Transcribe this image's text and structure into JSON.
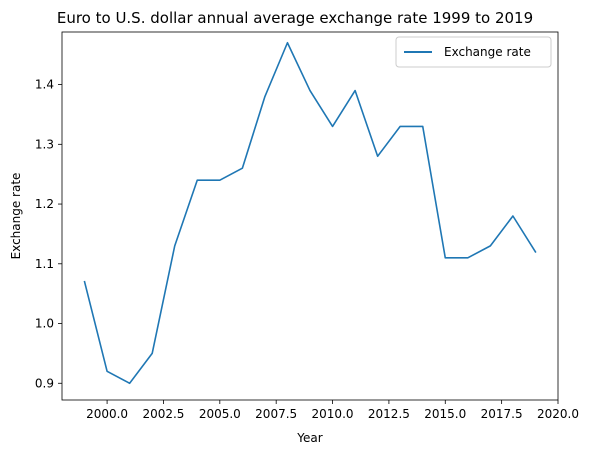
{
  "chart_data": {
    "type": "line",
    "title": "Euro to U.S. dollar annual average exchange rate 1999 to 2019",
    "xlabel": "Year",
    "ylabel": "Exchange rate",
    "xlim": [
      1998.0,
      2020.0
    ],
    "ylim": [
      0.872,
      1.488
    ],
    "xticks": [
      2000.0,
      2002.5,
      2005.0,
      2007.5,
      2010.0,
      2012.5,
      2015.0,
      2017.5,
      2020.0
    ],
    "xtick_labels": [
      "2000.0",
      "2002.5",
      "2005.0",
      "2007.5",
      "2010.0",
      "2012.5",
      "2015.0",
      "2017.5",
      "2020.0"
    ],
    "yticks": [
      0.9,
      1.0,
      1.1,
      1.2,
      1.3,
      1.4
    ],
    "ytick_labels": [
      "0.9",
      "1.0",
      "1.1",
      "1.2",
      "1.3",
      "1.4"
    ],
    "grid": false,
    "legend": "top-right",
    "series": [
      {
        "name": "Exchange rate",
        "color": "#1f77b4",
        "x": [
          1999,
          2000,
          2001,
          2002,
          2003,
          2004,
          2005,
          2006,
          2007,
          2008,
          2009,
          2010,
          2011,
          2012,
          2013,
          2014,
          2015,
          2016,
          2017,
          2018,
          2019
        ],
        "y": [
          1.07,
          0.92,
          0.9,
          0.95,
          1.13,
          1.24,
          1.24,
          1.26,
          1.38,
          1.47,
          1.39,
          1.33,
          1.39,
          1.28,
          1.33,
          1.33,
          1.11,
          1.11,
          1.13,
          1.18,
          1.12
        ]
      }
    ]
  }
}
